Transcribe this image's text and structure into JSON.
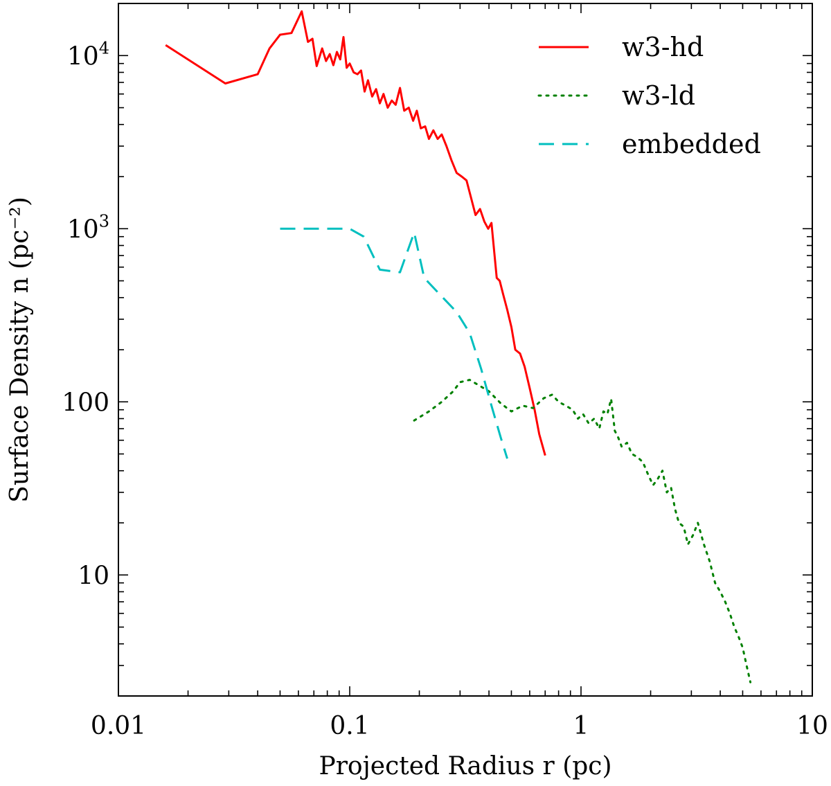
{
  "chart_data": {
    "type": "line",
    "title": "",
    "xlabel": "Projected Radius r (pc)",
    "ylabel": "Surface Density n (pc⁻²)",
    "xscale": "log",
    "yscale": "log",
    "xlim": [
      0.01,
      10
    ],
    "ylim": [
      2.0,
      20000
    ],
    "grid": false,
    "legend_position": "top-right",
    "x_ticks": [
      {
        "value": 0.01,
        "label": "0.01"
      },
      {
        "value": 0.1,
        "label": "0.1"
      },
      {
        "value": 1,
        "label": "1"
      },
      {
        "value": 10,
        "label": "10"
      }
    ],
    "y_ticks": [
      {
        "value": 10,
        "label": "10"
      },
      {
        "value": 100,
        "label": "100"
      },
      {
        "value": 1000,
        "label": "10",
        "sup": "3"
      },
      {
        "value": 10000,
        "label": "10",
        "sup": "4"
      }
    ],
    "series": [
      {
        "name": "w3-hd",
        "color": "#ff0000",
        "style": "solid",
        "x": [
          0.016,
          0.029,
          0.04,
          0.045,
          0.05,
          0.056,
          0.062,
          0.066,
          0.069,
          0.072,
          0.076,
          0.079,
          0.082,
          0.085,
          0.088,
          0.091,
          0.094,
          0.097,
          0.1,
          0.104,
          0.108,
          0.112,
          0.116,
          0.12,
          0.125,
          0.13,
          0.135,
          0.14,
          0.146,
          0.152,
          0.158,
          0.165,
          0.172,
          0.18,
          0.188,
          0.195,
          0.203,
          0.212,
          0.22,
          0.23,
          0.24,
          0.25,
          0.262,
          0.275,
          0.29,
          0.305,
          0.32,
          0.335,
          0.35,
          0.366,
          0.382,
          0.397,
          0.41,
          0.422,
          0.432,
          0.445,
          0.46,
          0.48,
          0.5,
          0.52,
          0.545,
          0.57,
          0.6,
          0.63,
          0.66,
          0.7
        ],
        "y": [
          11500,
          6900,
          7800,
          11000,
          13200,
          13500,
          18000,
          12000,
          12500,
          8700,
          11000,
          9300,
          10200,
          8800,
          10500,
          9500,
          12800,
          8500,
          9000,
          8000,
          7800,
          8200,
          6200,
          7200,
          5800,
          6400,
          5300,
          6000,
          5000,
          5500,
          5200,
          6500,
          4800,
          5000,
          4200,
          4800,
          3800,
          3900,
          3300,
          3700,
          3300,
          3500,
          3000,
          2500,
          2100,
          2000,
          1900,
          1500,
          1200,
          1300,
          1100,
          1000,
          1080,
          720,
          520,
          500,
          420,
          340,
          270,
          200,
          190,
          160,
          120,
          90,
          65,
          49
        ]
      },
      {
        "name": "w3-ld",
        "color": "#008000",
        "style": "dotted",
        "x": [
          0.19,
          0.22,
          0.25,
          0.28,
          0.3,
          0.33,
          0.36,
          0.4,
          0.45,
          0.5,
          0.56,
          0.62,
          0.69,
          0.75,
          0.8,
          0.86,
          0.92,
          0.97,
          1.02,
          1.08,
          1.14,
          1.2,
          1.25,
          1.3,
          1.35,
          1.4,
          1.45,
          1.5,
          1.58,
          1.66,
          1.75,
          1.85,
          1.95,
          2.05,
          2.15,
          2.25,
          2.35,
          2.45,
          2.55,
          2.65,
          2.78,
          2.9,
          3.05,
          3.2,
          3.4,
          3.6,
          3.8,
          4.0,
          4.2,
          4.4,
          4.6,
          4.8,
          5.0,
          5.2,
          5.4
        ],
        "y": [
          78,
          88,
          100,
          115,
          130,
          134,
          125,
          115,
          98,
          88,
          95,
          92,
          105,
          110,
          100,
          95,
          90,
          80,
          85,
          75,
          80,
          70,
          88,
          85,
          104,
          68,
          62,
          55,
          58,
          50,
          48,
          45,
          38,
          33,
          36,
          40,
          30,
          32,
          24,
          20,
          19,
          15,
          17,
          20,
          15,
          12,
          9,
          8,
          7,
          6,
          5,
          4.4,
          3.8,
          3.0,
          2.4
        ]
      },
      {
        "name": "embedded",
        "color": "#00bfbf",
        "style": "dashed",
        "x": [
          0.05,
          0.1,
          0.115,
          0.135,
          0.165,
          0.19,
          0.21,
          0.24,
          0.29,
          0.33,
          0.37,
          0.41,
          0.45,
          0.48
        ],
        "y": [
          1000,
          1000,
          900,
          580,
          560,
          950,
          520,
          430,
          330,
          250,
          155,
          95,
          62,
          47
        ]
      }
    ]
  }
}
